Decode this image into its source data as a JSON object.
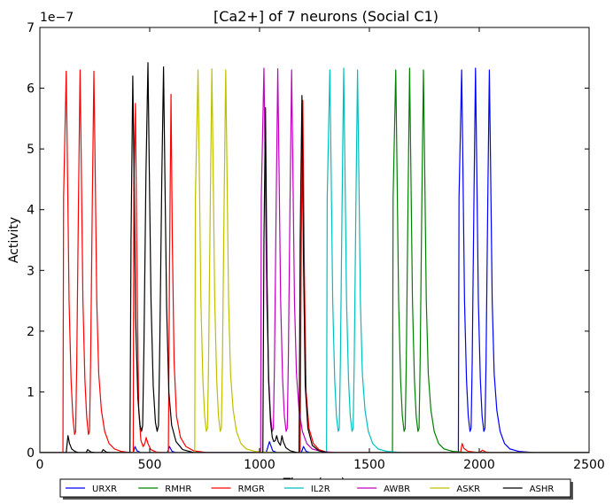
{
  "chart_data": {
    "type": "line",
    "title": "[Ca2+] of 7 neurons (Social C1)",
    "xlabel": "Time (ms)",
    "ylabel": "Activity",
    "y_scale_label": "1e−7",
    "xlim": [
      0,
      2500
    ],
    "ylim": [
      0,
      7
    ],
    "x_ticks": [
      0,
      500,
      1000,
      1500,
      2000,
      2500
    ],
    "y_ticks": [
      0,
      1,
      2,
      3,
      4,
      5,
      6,
      7
    ],
    "grid": false,
    "legend_position": "bottom-center",
    "legend_columns": 7,
    "series": [
      {
        "name": "URXR",
        "color": "#0000ff",
        "points": [
          [
            0,
            0
          ],
          [
            425,
            0
          ],
          [
            433,
            0.1
          ],
          [
            442,
            0.03
          ],
          [
            460,
            0
          ],
          [
            580,
            0
          ],
          [
            590,
            0.1
          ],
          [
            602,
            0.02
          ],
          [
            620,
            0
          ],
          [
            1030,
            0
          ],
          [
            1045,
            0.18
          ],
          [
            1060,
            0.03
          ],
          [
            1080,
            0
          ],
          [
            1190,
            0
          ],
          [
            1200,
            0.1
          ],
          [
            1212,
            0.02
          ],
          [
            1230,
            0
          ],
          [
            1905,
            0
          ],
          [
            1908,
            4.2
          ],
          [
            1920,
            6.3
          ],
          [
            1926,
            4.6
          ],
          [
            1933,
            2.5
          ],
          [
            1942,
            1.2
          ],
          [
            1950,
            0.6
          ],
          [
            1958,
            0.35
          ],
          [
            1963,
            0.4
          ],
          [
            1968,
            1.5
          ],
          [
            1976,
            4.2
          ],
          [
            1983,
            6.33
          ],
          [
            1989,
            4.6
          ],
          [
            1996,
            2.5
          ],
          [
            2005,
            1.2
          ],
          [
            2013,
            0.6
          ],
          [
            2021,
            0.35
          ],
          [
            2026,
            0.4
          ],
          [
            2031,
            1.5
          ],
          [
            2039,
            4.2
          ],
          [
            2046,
            6.3
          ],
          [
            2052,
            4.6
          ],
          [
            2059,
            2.5
          ],
          [
            2068,
            1.3
          ],
          [
            2080,
            0.7
          ],
          [
            2095,
            0.35
          ],
          [
            2115,
            0.15
          ],
          [
            2140,
            0.06
          ],
          [
            2180,
            0.02
          ],
          [
            2250,
            0
          ],
          [
            2500,
            0
          ]
        ]
      },
      {
        "name": "RMHR",
        "color": "#008000",
        "points": [
          [
            0,
            0
          ],
          [
            1605,
            0
          ],
          [
            1608,
            4.2
          ],
          [
            1620,
            6.3
          ],
          [
            1626,
            4.6
          ],
          [
            1633,
            2.5
          ],
          [
            1642,
            1.2
          ],
          [
            1650,
            0.6
          ],
          [
            1658,
            0.35
          ],
          [
            1663,
            0.4
          ],
          [
            1668,
            1.5
          ],
          [
            1676,
            4.2
          ],
          [
            1683,
            6.33
          ],
          [
            1689,
            4.6
          ],
          [
            1696,
            2.5
          ],
          [
            1705,
            1.2
          ],
          [
            1713,
            0.6
          ],
          [
            1721,
            0.35
          ],
          [
            1726,
            0.4
          ],
          [
            1731,
            1.5
          ],
          [
            1739,
            4.2
          ],
          [
            1746,
            6.3
          ],
          [
            1752,
            4.6
          ],
          [
            1759,
            2.5
          ],
          [
            1768,
            1.3
          ],
          [
            1780,
            0.7
          ],
          [
            1795,
            0.35
          ],
          [
            1815,
            0.15
          ],
          [
            1840,
            0.06
          ],
          [
            1880,
            0.02
          ],
          [
            1950,
            0
          ],
          [
            2500,
            0
          ]
        ]
      },
      {
        "name": "RMGR",
        "color": "#ff0000",
        "points": [
          [
            0,
            0
          ],
          [
            105,
            0
          ],
          [
            108,
            4.2
          ],
          [
            120,
            6.28
          ],
          [
            126,
            4.6
          ],
          [
            133,
            2.5
          ],
          [
            142,
            1.2
          ],
          [
            150,
            0.6
          ],
          [
            158,
            0.3
          ],
          [
            163,
            0.35
          ],
          [
            168,
            1.5
          ],
          [
            176,
            4.2
          ],
          [
            183,
            6.3
          ],
          [
            189,
            4.6
          ],
          [
            196,
            2.5
          ],
          [
            205,
            1.2
          ],
          [
            213,
            0.6
          ],
          [
            221,
            0.3
          ],
          [
            226,
            0.35
          ],
          [
            231,
            1.5
          ],
          [
            239,
            4.2
          ],
          [
            246,
            6.28
          ],
          [
            252,
            4.6
          ],
          [
            259,
            2.5
          ],
          [
            268,
            1.3
          ],
          [
            280,
            0.7
          ],
          [
            295,
            0.35
          ],
          [
            315,
            0.15
          ],
          [
            340,
            0.06
          ],
          [
            370,
            0.02
          ],
          [
            410,
            0
          ],
          [
            425,
            0
          ],
          [
            428,
            4.4
          ],
          [
            435,
            5.75
          ],
          [
            442,
            3.0
          ],
          [
            450,
            0.7
          ],
          [
            460,
            0.2
          ],
          [
            470,
            0.1
          ],
          [
            478,
            0.15
          ],
          [
            484,
            0.25
          ],
          [
            492,
            0.15
          ],
          [
            505,
            0.05
          ],
          [
            530,
            0.01
          ],
          [
            570,
            0
          ],
          [
            585,
            0
          ],
          [
            590,
            3.0
          ],
          [
            597,
            5.9
          ],
          [
            603,
            3.5
          ],
          [
            611,
            1.5
          ],
          [
            622,
            0.6
          ],
          [
            640,
            0.25
          ],
          [
            665,
            0.1
          ],
          [
            700,
            0.03
          ],
          [
            760,
            0
          ],
          [
            1185,
            0
          ],
          [
            1190,
            3.5
          ],
          [
            1197,
            5.8
          ],
          [
            1204,
            3.0
          ],
          [
            1212,
            1.0
          ],
          [
            1225,
            0.4
          ],
          [
            1245,
            0.15
          ],
          [
            1270,
            0.05
          ],
          [
            1310,
            0
          ],
          [
            1890,
            0
          ],
          [
            1915,
            0
          ],
          [
            1922,
            0.15
          ],
          [
            1930,
            0.07
          ],
          [
            1950,
            0.02
          ],
          [
            2000,
            0.0
          ],
          [
            2015,
            0.04
          ],
          [
            2030,
            0.01
          ],
          [
            2050,
            0
          ],
          [
            2500,
            0
          ]
        ]
      },
      {
        "name": "IL2R",
        "color": "#00bfbf",
        "points": [
          [
            0,
            0
          ],
          [
            1305,
            0
          ],
          [
            1308,
            4.2
          ],
          [
            1320,
            6.3
          ],
          [
            1326,
            4.6
          ],
          [
            1333,
            2.5
          ],
          [
            1342,
            1.2
          ],
          [
            1350,
            0.6
          ],
          [
            1358,
            0.35
          ],
          [
            1363,
            0.4
          ],
          [
            1368,
            1.5
          ],
          [
            1376,
            4.2
          ],
          [
            1383,
            6.33
          ],
          [
            1389,
            4.6
          ],
          [
            1396,
            2.5
          ],
          [
            1405,
            1.2
          ],
          [
            1413,
            0.6
          ],
          [
            1421,
            0.35
          ],
          [
            1426,
            0.4
          ],
          [
            1431,
            1.5
          ],
          [
            1439,
            4.2
          ],
          [
            1446,
            6.3
          ],
          [
            1452,
            4.6
          ],
          [
            1459,
            2.5
          ],
          [
            1468,
            1.3
          ],
          [
            1480,
            0.7
          ],
          [
            1495,
            0.35
          ],
          [
            1515,
            0.15
          ],
          [
            1540,
            0.06
          ],
          [
            1580,
            0.02
          ],
          [
            1650,
            0
          ],
          [
            2500,
            0
          ]
        ]
      },
      {
        "name": "AWBR",
        "color": "#bf00bf",
        "points": [
          [
            0,
            0
          ],
          [
            1005,
            0
          ],
          [
            1008,
            4.2
          ],
          [
            1020,
            6.33
          ],
          [
            1026,
            4.6
          ],
          [
            1033,
            2.5
          ],
          [
            1042,
            1.2
          ],
          [
            1050,
            0.6
          ],
          [
            1058,
            0.35
          ],
          [
            1063,
            0.4
          ],
          [
            1068,
            1.5
          ],
          [
            1076,
            4.2
          ],
          [
            1083,
            6.32
          ],
          [
            1089,
            4.6
          ],
          [
            1096,
            2.5
          ],
          [
            1105,
            1.2
          ],
          [
            1113,
            0.6
          ],
          [
            1121,
            0.35
          ],
          [
            1126,
            0.4
          ],
          [
            1131,
            1.5
          ],
          [
            1139,
            4.2
          ],
          [
            1146,
            6.3
          ],
          [
            1152,
            4.6
          ],
          [
            1159,
            2.5
          ],
          [
            1168,
            1.3
          ],
          [
            1180,
            0.7
          ],
          [
            1195,
            0.35
          ],
          [
            1215,
            0.15
          ],
          [
            1240,
            0.06
          ],
          [
            1280,
            0.02
          ],
          [
            1350,
            0
          ],
          [
            2500,
            0
          ]
        ]
      },
      {
        "name": "ASKR",
        "color": "#bfbf00",
        "points": [
          [
            0,
            0
          ],
          [
            705,
            0
          ],
          [
            708,
            4.2
          ],
          [
            720,
            6.3
          ],
          [
            726,
            4.6
          ],
          [
            733,
            2.5
          ],
          [
            742,
            1.2
          ],
          [
            750,
            0.6
          ],
          [
            758,
            0.35
          ],
          [
            763,
            0.4
          ],
          [
            768,
            1.5
          ],
          [
            776,
            4.2
          ],
          [
            783,
            6.32
          ],
          [
            789,
            4.6
          ],
          [
            796,
            2.5
          ],
          [
            805,
            1.2
          ],
          [
            813,
            0.6
          ],
          [
            821,
            0.35
          ],
          [
            826,
            0.4
          ],
          [
            831,
            1.5
          ],
          [
            839,
            4.2
          ],
          [
            846,
            6.3
          ],
          [
            852,
            4.6
          ],
          [
            859,
            2.5
          ],
          [
            868,
            1.3
          ],
          [
            880,
            0.7
          ],
          [
            895,
            0.35
          ],
          [
            915,
            0.15
          ],
          [
            940,
            0.06
          ],
          [
            980,
            0.02
          ],
          [
            1050,
            0
          ],
          [
            2500,
            0
          ]
        ]
      },
      {
        "name": "ASHR",
        "color": "#000000",
        "points": [
          [
            0,
            0
          ],
          [
            120,
            0
          ],
          [
            128,
            0.28
          ],
          [
            135,
            0.15
          ],
          [
            145,
            0.06
          ],
          [
            160,
            0.02
          ],
          [
            175,
            0
          ],
          [
            210,
            0
          ],
          [
            218,
            0.05
          ],
          [
            232,
            0.01
          ],
          [
            250,
            0
          ],
          [
            280,
            0
          ],
          [
            288,
            0.05
          ],
          [
            302,
            0.01
          ],
          [
            320,
            0
          ],
          [
            410,
            0
          ],
          [
            415,
            3.5
          ],
          [
            423,
            6.2
          ],
          [
            429,
            4.5
          ],
          [
            436,
            2.2
          ],
          [
            446,
            0.9
          ],
          [
            456,
            0.45
          ],
          [
            463,
            0.35
          ],
          [
            468,
            0.45
          ],
          [
            474,
            1.8
          ],
          [
            483,
            4.6
          ],
          [
            492,
            6.42
          ],
          [
            498,
            4.7
          ],
          [
            506,
            2.5
          ],
          [
            516,
            1.1
          ],
          [
            526,
            0.5
          ],
          [
            534,
            0.35
          ],
          [
            540,
            0.45
          ],
          [
            546,
            1.8
          ],
          [
            555,
            4.5
          ],
          [
            563,
            6.35
          ],
          [
            569,
            4.6
          ],
          [
            577,
            2.4
          ],
          [
            587,
            1.0
          ],
          [
            600,
            0.45
          ],
          [
            620,
            0.18
          ],
          [
            650,
            0.05
          ],
          [
            700,
            0
          ],
          [
            1015,
            0
          ],
          [
            1020,
            3.5
          ],
          [
            1027,
            5.68
          ],
          [
            1033,
            3.2
          ],
          [
            1041,
            1.2
          ],
          [
            1050,
            0.5
          ],
          [
            1058,
            0.25
          ],
          [
            1065,
            0.18
          ],
          [
            1072,
            0.2
          ],
          [
            1078,
            0.28
          ],
          [
            1085,
            0.18
          ],
          [
            1095,
            0.12
          ],
          [
            1102,
            0.28
          ],
          [
            1108,
            0.18
          ],
          [
            1120,
            0.08
          ],
          [
            1140,
            0.03
          ],
          [
            1170,
            0
          ],
          [
            1180,
            0
          ],
          [
            1185,
            3.5
          ],
          [
            1193,
            5.88
          ],
          [
            1200,
            3.2
          ],
          [
            1208,
            1.1
          ],
          [
            1220,
            0.4
          ],
          [
            1240,
            0.12
          ],
          [
            1270,
            0.03
          ],
          [
            1310,
            0
          ],
          [
            2500,
            0
          ]
        ]
      }
    ]
  }
}
